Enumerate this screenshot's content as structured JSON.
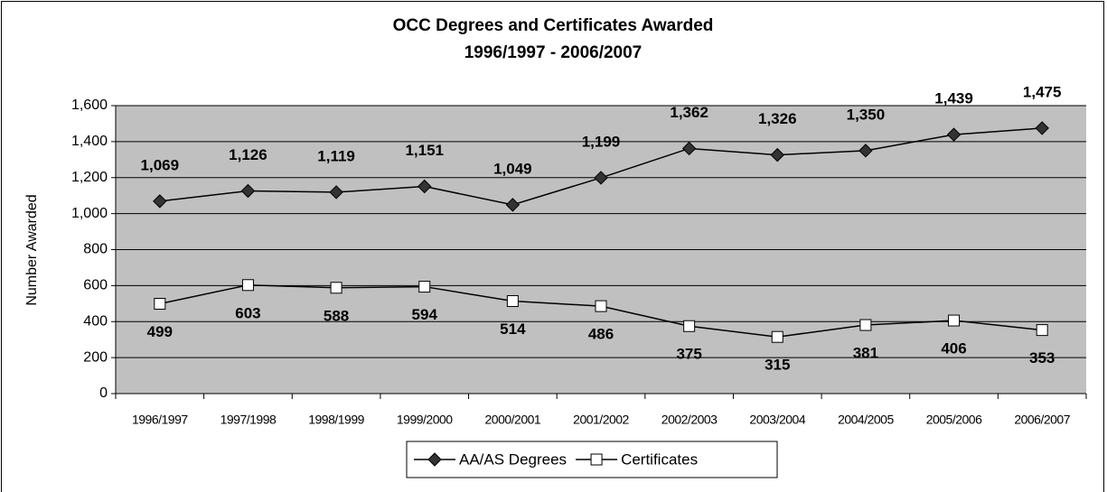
{
  "chart_data": {
    "type": "line",
    "title": "OCC Degrees and Certificates Awarded",
    "subtitle": "1996/1997 - 2006/2007",
    "y_label": "Number Awarded",
    "categories": [
      "1996/1997",
      "1997/1998",
      "1998/1999",
      "1999/2000",
      "2000/2001",
      "2001/2002",
      "2002/2003",
      "2003/2004",
      "2004/2005",
      "2005/2006",
      "2006/2007"
    ],
    "series": [
      {
        "name": "AA/AS Degrees",
        "color": "#333333",
        "marker": "diamond",
        "values": [
          1069,
          1126,
          1119,
          1151,
          1049,
          1199,
          1362,
          1326,
          1350,
          1439,
          1475
        ],
        "value_labels": [
          "1,069",
          "1,126",
          "1,119",
          "1,151",
          "1,049",
          "1,199",
          "1,362",
          "1,326",
          "1,350",
          "1,439",
          "1,475"
        ]
      },
      {
        "name": "Certificates",
        "color": "#ffffff",
        "marker": "square",
        "values": [
          499,
          603,
          588,
          594,
          514,
          486,
          375,
          315,
          381,
          406,
          353
        ]
      }
    ],
    "ylim": [
      0,
      1600
    ],
    "yticks": [
      0,
      200,
      400,
      600,
      800,
      {
        "value": 1000,
        "label": "1,000"
      },
      {
        "value": 1200,
        "label": "1,200"
      },
      {
        "value": 1400,
        "label": "1,400"
      },
      {
        "value": 1600,
        "label": "1,600"
      }
    ],
    "grid": true,
    "legend": "bottom"
  }
}
